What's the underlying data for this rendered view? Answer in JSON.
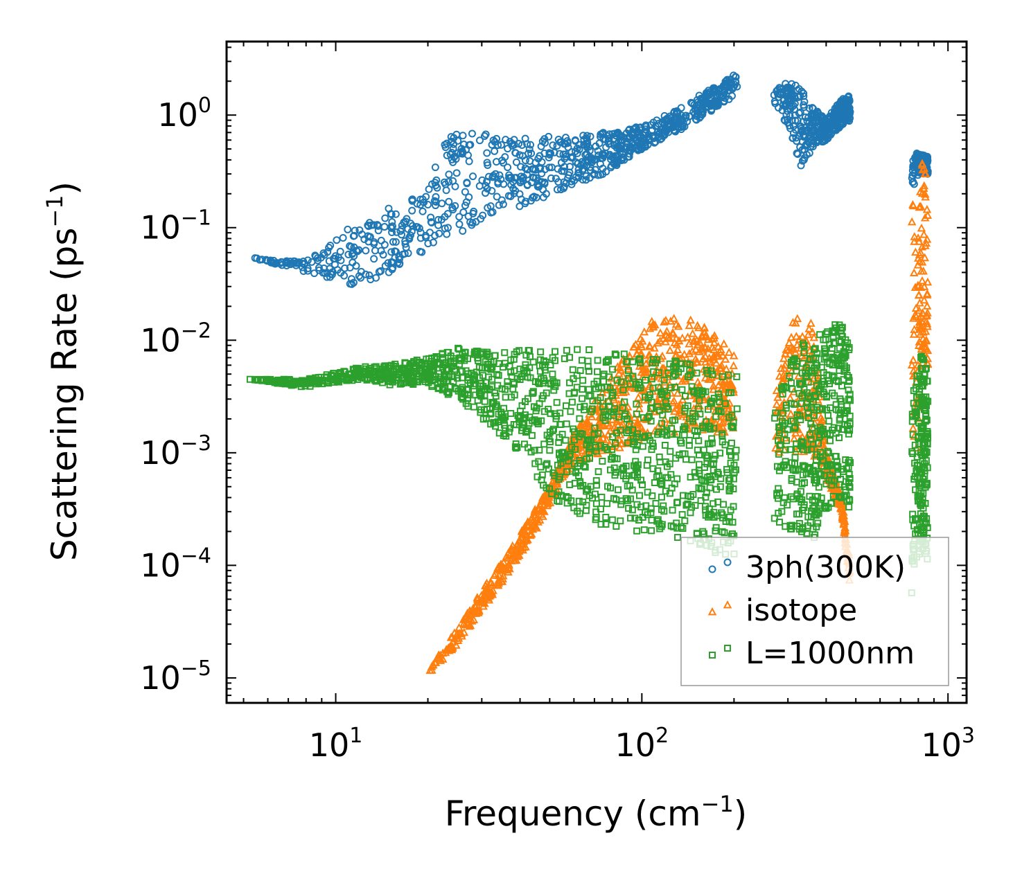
{
  "chart_data": {
    "type": "scatter",
    "title": "",
    "xlabel": "Frequency (cm⁻¹)",
    "ylabel": "Scattering Rate (ps⁻¹)",
    "xscale": "log",
    "yscale": "log",
    "xlim": [
      4.4,
      1150
    ],
    "ylim": [
      6e-06,
      4.5
    ],
    "x_ticks": [
      {
        "value": 10,
        "base": "10",
        "exp": "1"
      },
      {
        "value": 100,
        "base": "10",
        "exp": "2"
      },
      {
        "value": 1000,
        "base": "10",
        "exp": "3"
      }
    ],
    "y_ticks": [
      {
        "value": 1,
        "base": "10",
        "exp": "0"
      },
      {
        "value": 0.1,
        "base": "10",
        "exp": "−1"
      },
      {
        "value": 0.01,
        "base": "10",
        "exp": "−2"
      },
      {
        "value": 0.001,
        "base": "10",
        "exp": "−3"
      },
      {
        "value": 0.0001,
        "base": "10",
        "exp": "−4"
      },
      {
        "value": 1e-05,
        "base": "10",
        "exp": "−5"
      }
    ],
    "legend_position": "lower-right",
    "series": [
      {
        "name": "3ph(300K)",
        "marker": "circle",
        "color": "#1f77b4",
        "segments": [
          {
            "x": [
              5.2,
              8,
              12,
              15,
              19,
              24,
              30,
              40,
              55,
              75,
              100,
              130,
              160,
              190,
              205
            ],
            "y_low": [
              0.055,
              0.04,
              0.03,
              0.04,
              0.06,
              0.08,
              0.12,
              0.15,
              0.22,
              0.3,
              0.5,
              0.7,
              1.0,
              1.3,
              1.7
            ],
            "y_high": [
              0.055,
              0.05,
              0.12,
              0.15,
              0.2,
              0.75,
              0.7,
              0.65,
              0.65,
              0.7,
              0.8,
              1.1,
              1.6,
              2.1,
              2.4
            ],
            "n": 900
          },
          {
            "x": [
              270,
              300,
              330,
              360,
              400,
              450,
              480
            ],
            "y_low": [
              1.3,
              0.8,
              0.3,
              0.5,
              0.6,
              0.8,
              0.9
            ],
            "y_high": [
              1.8,
              2.0,
              1.8,
              1.2,
              0.9,
              1.4,
              1.5
            ],
            "n": 380
          },
          {
            "x": [
              760,
              790,
              820,
              860
            ],
            "y_low": [
              0.2,
              0.25,
              0.3,
              0.3
            ],
            "y_high": [
              0.4,
              0.46,
              0.45,
              0.43
            ],
            "n": 120
          }
        ]
      },
      {
        "name": "isotope",
        "marker": "triangle",
        "color": "#ff7f0e",
        "segments": [
          {
            "x": [
              20,
              25,
              30,
              35,
              40,
              45,
              50,
              55,
              60,
              80,
              110,
              150,
              200
            ],
            "y_low": [
              1e-05,
              2e-05,
              4e-05,
              7e-05,
              0.00012,
              0.0002,
              0.00035,
              0.0006,
              0.0008,
              0.001,
              0.0015,
              0.0015,
              0.0015
            ],
            "y_high": [
              1.2e-05,
              2.8e-05,
              6e-05,
              0.00011,
              0.00019,
              0.00032,
              0.0005,
              0.0009,
              0.0015,
              0.005,
              0.016,
              0.015,
              0.008
            ],
            "n": 900
          },
          {
            "x": [
              270,
              300,
              330,
              360,
              400,
              450,
              480
            ],
            "y_low": [
              0.001,
              0.001,
              0.001,
              0.001,
              0.0006,
              0.0003,
              5e-05
            ],
            "y_high": [
              0.003,
              0.01,
              0.025,
              0.015,
              0.001,
              0.0004,
              0.0001
            ],
            "n": 350
          },
          {
            "x": [
              760,
              790,
              820,
              860
            ],
            "y_low": [
              0.002,
              0.001,
              0.005,
              0.005
            ],
            "y_high": [
              0.3,
              0.05,
              0.4,
              0.3
            ],
            "n": 120
          }
        ]
      },
      {
        "name": "L=1000nm",
        "marker": "square",
        "color": "#2ca02c",
        "segments": [
          {
            "x": [
              5.2,
              8,
              12,
              15,
              20,
              25,
              30,
              40,
              50,
              60,
              80,
              110,
              150,
              205
            ],
            "y_low": [
              0.0045,
              0.0038,
              0.0045,
              0.004,
              0.004,
              0.003,
              0.002,
              0.001,
              0.0004,
              0.0003,
              0.0002,
              0.0002,
              0.00015,
              0.0001
            ],
            "y_high": [
              0.0045,
              0.0045,
              0.0058,
              0.006,
              0.007,
              0.0085,
              0.008,
              0.0085,
              0.0085,
              0.0085,
              0.008,
              0.0075,
              0.006,
              0.005
            ],
            "n": 1300
          },
          {
            "x": [
              270,
              300,
              330,
              360,
              400,
              450,
              480
            ],
            "y_low": [
              0.0002,
              0.0002,
              0.0002,
              0.00015,
              0.0003,
              0.0004,
              0.0003
            ],
            "y_high": [
              0.002,
              0.008,
              0.01,
              0.008,
              0.015,
              0.014,
              0.008
            ],
            "n": 420
          },
          {
            "x": [
              760,
              790,
              820,
              860
            ],
            "y_low": [
              5e-05,
              0.0001,
              0.00015,
              0.0001
            ],
            "y_high": [
              0.003,
              0.005,
              0.008,
              0.006
            ],
            "n": 200
          }
        ]
      }
    ]
  }
}
